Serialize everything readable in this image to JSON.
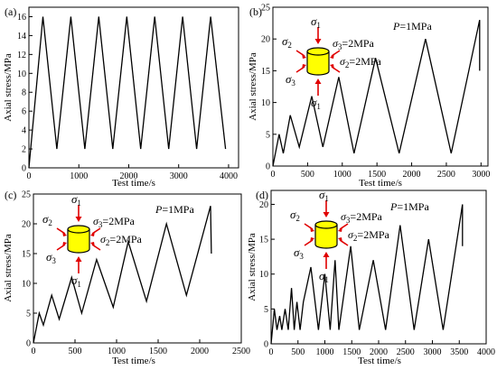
{
  "figure": {
    "panels": [
      {
        "panel_label": "(a)",
        "pressure": "",
        "stress_labels": null
      },
      {
        "panel_label": "(b)",
        "pressure": "P=1MPa",
        "stress_labels": {
          "s1_top": "σ1",
          "s1_bottom": "σ1",
          "s2": "σ2",
          "s3": "σ3",
          "s3_value": "σ3=2MPa",
          "s2_value": "σ2=2MPa"
        }
      },
      {
        "panel_label": "(c)",
        "pressure": "P=1MPa",
        "stress_labels": {
          "s1_top": "σ1",
          "s1_bottom": "σ1",
          "s2": "σ2",
          "s3": "σ3",
          "s3_value": "σ3=2MPa",
          "s2_value": "σ2=2MPa"
        }
      },
      {
        "panel_label": "(d)",
        "pressure": "P=1MPa",
        "stress_labels": {
          "s1_top": "σ1",
          "s1_bottom": "σ1",
          "s2": "σ2",
          "s3": "σ3",
          "s3_value": "σ3=2MPa",
          "s2_value": "σ2=2MPa"
        }
      }
    ]
  },
  "colors": {
    "specimen_fill": "#ffff00",
    "arrow": "#e00000",
    "line": "#000000"
  },
  "chart_data": [
    {
      "type": "line",
      "title": "(a)",
      "xlabel": "Test time/s",
      "ylabel": "Axial stress/MPa",
      "xlim": [
        0,
        4200
      ],
      "ylim": [
        0,
        17
      ],
      "xticks": [
        0,
        1000,
        2000,
        3000,
        4000
      ],
      "yticks": [
        0,
        2,
        4,
        6,
        8,
        10,
        12,
        14,
        16
      ],
      "x": [
        0,
        280,
        560,
        840,
        1120,
        1400,
        1680,
        1960,
        2240,
        2520,
        2800,
        3080,
        3360,
        3640,
        3940
      ],
      "y": [
        0,
        16,
        2,
        16,
        2,
        16,
        2,
        16,
        2,
        16,
        2,
        16,
        2,
        16,
        2
      ]
    },
    {
      "type": "line",
      "title": "(b)",
      "xlabel": "Test time/s",
      "ylabel": "Axial stress/MPa",
      "xlim": [
        0,
        3100
      ],
      "ylim": [
        0,
        25
      ],
      "xticks": [
        0,
        500,
        1000,
        1500,
        2000,
        2500,
        3000
      ],
      "yticks": [
        0,
        5,
        10,
        15,
        20,
        25
      ],
      "x": [
        0,
        90,
        150,
        250,
        380,
        560,
        720,
        950,
        1170,
        1480,
        1820,
        2200,
        2570,
        2980,
        2980
      ],
      "y": [
        0,
        5,
        2,
        8,
        3,
        11,
        3,
        14,
        2,
        17,
        2,
        20,
        2,
        23,
        15
      ]
    },
    {
      "type": "line",
      "title": "(c)",
      "xlabel": "Test time/s",
      "ylabel": "Axial stress/MPa",
      "xlim": [
        0,
        2500
      ],
      "ylim": [
        0,
        25
      ],
      "xticks": [
        0,
        500,
        1000,
        1500,
        2000,
        2500
      ],
      "yticks": [
        0,
        5,
        10,
        15,
        20,
        25
      ],
      "x": [
        0,
        70,
        120,
        220,
        310,
        460,
        580,
        760,
        960,
        1140,
        1360,
        1600,
        1840,
        2130,
        2140
      ],
      "y": [
        0,
        5,
        3,
        8,
        4,
        11,
        5,
        14,
        6,
        17,
        7,
        20,
        8,
        23,
        15
      ]
    },
    {
      "type": "line",
      "title": "(d)",
      "xlabel": "Test time/s",
      "ylabel": "Axial stress/MPa",
      "xlim": [
        0,
        4000
      ],
      "ylim": [
        0,
        22
      ],
      "xticks": [
        0,
        500,
        1000,
        1500,
        2000,
        2500,
        3000,
        3500,
        4000
      ],
      "yticks": [
        0,
        5,
        10,
        15,
        20
      ],
      "x": [
        0,
        60,
        110,
        160,
        200,
        260,
        320,
        380,
        430,
        480,
        540,
        600,
        740,
        880,
        1000,
        1100,
        1190,
        1260,
        1480,
        1640,
        1900,
        2130,
        2400,
        2660,
        2930,
        3200,
        3560,
        3560
      ],
      "y": [
        0,
        5,
        2,
        4,
        2,
        5,
        2,
        8,
        2,
        6,
        2,
        6,
        11,
        2,
        10,
        2,
        12,
        2,
        14,
        2,
        12,
        2,
        17,
        2,
        15,
        2,
        20,
        14
      ]
    }
  ]
}
